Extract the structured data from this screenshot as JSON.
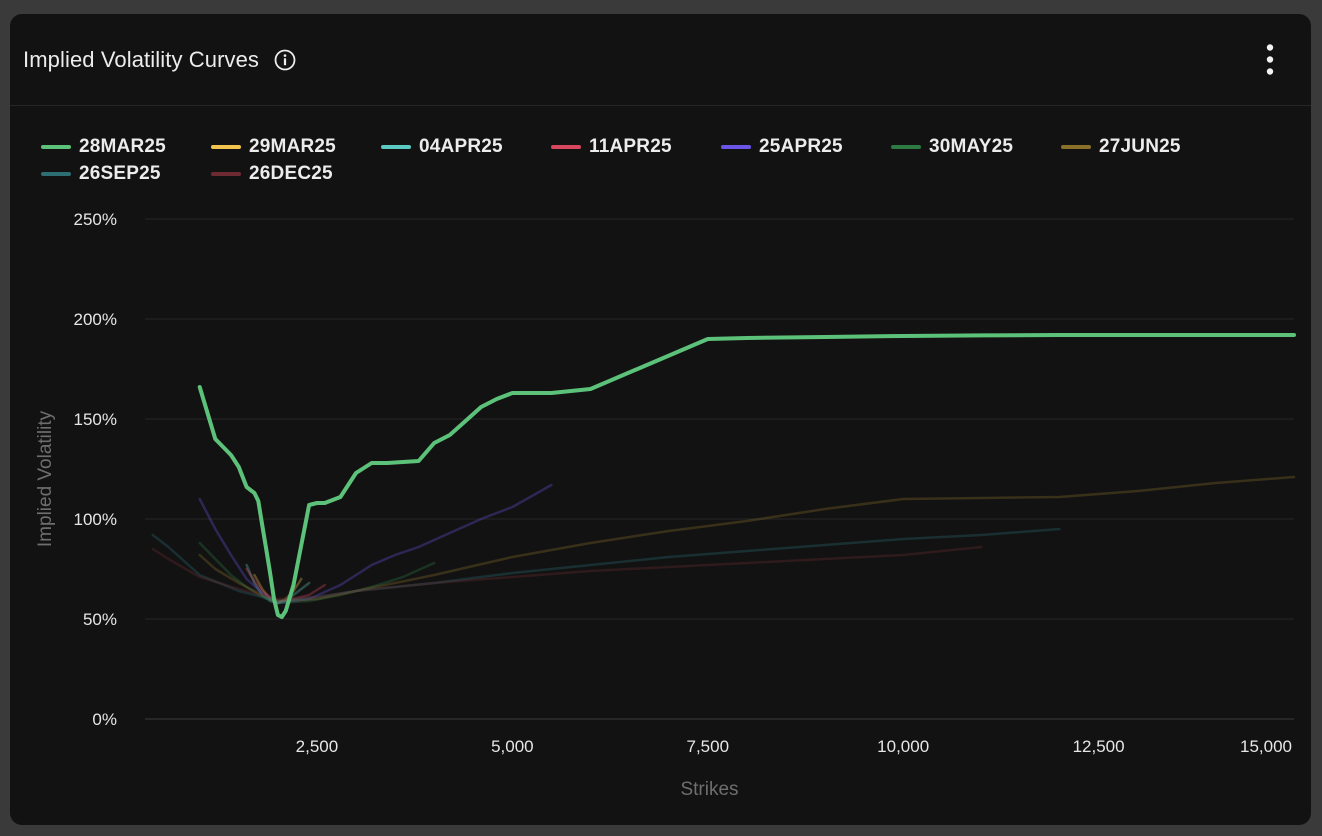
{
  "header": {
    "title": "Implied Volatility Curves",
    "info_icon": "info-circle-icon",
    "menu_icon": "kebab-menu-icon"
  },
  "chart_data": {
    "type": "line",
    "xlabel": "Strikes",
    "ylabel": "Implied Volatility",
    "xlim": [
      300,
      15000
    ],
    "ylim": [
      0,
      250
    ],
    "x_ticks": [
      2500,
      5000,
      7500,
      10000,
      12500,
      15000
    ],
    "x_tick_labels": [
      "2,500",
      "5,000",
      "7,500",
      "10,000",
      "12,500",
      "15,000"
    ],
    "y_ticks": [
      0,
      50,
      100,
      150,
      200,
      250
    ],
    "y_tick_labels": [
      "0%",
      "50%",
      "100%",
      "150%",
      "200%",
      "250%"
    ],
    "grid": "horizontal",
    "legend_position": "top-left",
    "highlighted_series": "28MAR25",
    "series": [
      {
        "name": "28MAR25",
        "color": "#5cc27a",
        "x": [
          1000,
          1200,
          1400,
          1500,
          1600,
          1700,
          1750,
          1800,
          1850,
          1900,
          1950,
          2000,
          2050,
          2100,
          2200,
          2300,
          2400,
          2500,
          2600,
          2800,
          3000,
          3200,
          3400,
          3800,
          4000,
          4200,
          4400,
          4600,
          4800,
          5000,
          5500,
          6000,
          7500,
          8000,
          9000,
          10000,
          11000,
          12000,
          13000,
          14000,
          15000
        ],
        "y": [
          166,
          140,
          132,
          126,
          116,
          113,
          109,
          97,
          85,
          73,
          60,
          52,
          51,
          54,
          67,
          87,
          107,
          108,
          108,
          111,
          123,
          128,
          128,
          129,
          138,
          142,
          149,
          156,
          160,
          163,
          163,
          165,
          190,
          190.5,
          191,
          191.5,
          191.8,
          192,
          192,
          192,
          192
        ]
      },
      {
        "name": "29MAR25",
        "color": "#f2c44f",
        "x": [
          1700,
          1800,
          1900,
          2000,
          2100,
          2200,
          2300
        ],
        "y": [
          72,
          65,
          60,
          58,
          60,
          64,
          70
        ]
      },
      {
        "name": "04APR25",
        "color": "#5cc9c2",
        "x": [
          1600,
          1700,
          1800,
          1900,
          2000,
          2100,
          2200,
          2400
        ],
        "y": [
          77,
          68,
          62,
          59,
          58,
          59,
          62,
          68
        ]
      },
      {
        "name": "11APR25",
        "color": "#d9475f",
        "x": [
          1600,
          1700,
          1800,
          1900,
          2000,
          2100,
          2200,
          2400,
          2600
        ],
        "y": [
          75,
          69,
          64,
          61,
          59,
          59,
          60,
          62,
          67
        ]
      },
      {
        "name": "25APR25",
        "color": "#6b55e6",
        "x": [
          1000,
          1200,
          1400,
          1600,
          1800,
          2000,
          2400,
          2800,
          3200,
          3500,
          3800,
          4200,
          4600,
          5000,
          5500
        ],
        "y": [
          110,
          95,
          82,
          70,
          63,
          58,
          60,
          67,
          77,
          82,
          86,
          93,
          100,
          106,
          117
        ]
      },
      {
        "name": "30MAY25",
        "color": "#2e7a43",
        "x": [
          1000,
          1200,
          1400,
          1600,
          1800,
          2000,
          2400,
          2800,
          3200,
          3600,
          4000
        ],
        "y": [
          88,
          80,
          72,
          66,
          61,
          58,
          59,
          62,
          66,
          71,
          78
        ]
      },
      {
        "name": "27JUN25",
        "color": "#8a7028",
        "x": [
          1000,
          1200,
          1500,
          1800,
          2000,
          2500,
          3000,
          4000,
          5000,
          6000,
          7000,
          8000,
          9000,
          10000,
          11000,
          12000,
          13000,
          14000,
          15000
        ],
        "y": [
          82,
          75,
          68,
          62,
          59,
          60,
          64,
          72,
          81,
          88,
          94,
          99,
          105,
          110,
          110.5,
          111,
          114,
          118,
          121
        ]
      },
      {
        "name": "26SEP25",
        "color": "#2c6e73",
        "x": [
          400,
          600,
          1000,
          1500,
          2000,
          2500,
          3000,
          4000,
          5000,
          6000,
          7000,
          8000,
          9000,
          10000,
          11000,
          12000
        ],
        "y": [
          92,
          86,
          72,
          64,
          59,
          61,
          64,
          68,
          73,
          77,
          81,
          84,
          87,
          90,
          92,
          95
        ]
      },
      {
        "name": "26DEC25",
        "color": "#6e2a33",
        "x": [
          400,
          600,
          1000,
          1500,
          2000,
          2500,
          3000,
          4000,
          5000,
          6000,
          7000,
          8000,
          9000,
          10000,
          11000
        ],
        "y": [
          85,
          80,
          71,
          65,
          60,
          61,
          64,
          68,
          71,
          74,
          76,
          78,
          80,
          82,
          86
        ]
      }
    ]
  }
}
